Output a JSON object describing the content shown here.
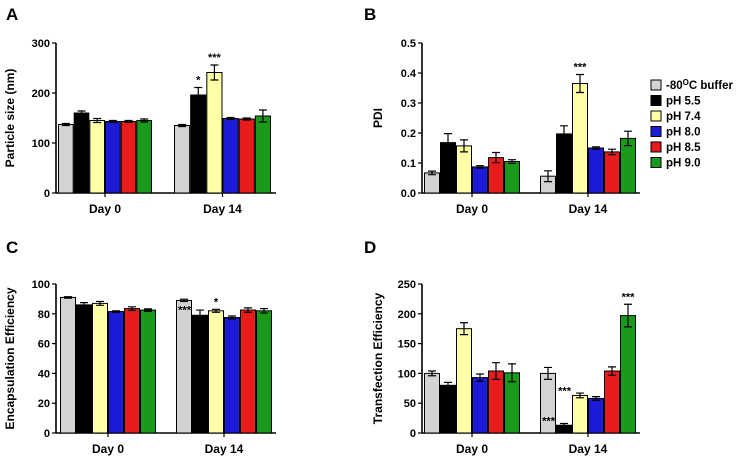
{
  "figure": {
    "colors": {
      "-80C buffer": "#d3d3d3",
      "pH 5.5": "#000000",
      "pH 7.4": "#ffffa8",
      "pH 8.0": "#1c1cd8",
      "pH 8.5": "#e81c1c",
      "pH 9.0": "#1a9a1a"
    },
    "legend": {
      "items": [
        {
          "key": "-80C buffer",
          "pre": "-80",
          "sup": "O",
          "post": "C buffer"
        },
        {
          "key": "pH 5.5",
          "pre": "pH 5.5",
          "sup": "",
          "post": ""
        },
        {
          "key": "pH 7.4",
          "pre": "pH 7.4",
          "sup": "",
          "post": ""
        },
        {
          "key": "pH 8.0",
          "pre": "pH 8.0",
          "sup": "",
          "post": ""
        },
        {
          "key": "pH 8.5",
          "pre": "pH 8.5",
          "sup": "",
          "post": ""
        },
        {
          "key": "pH 9.0",
          "pre": "pH 9.0",
          "sup": "",
          "post": ""
        }
      ]
    }
  },
  "chart_data": [
    {
      "panel": "A",
      "type": "bar",
      "ylabel": "Particle size (nm)",
      "ylim": [
        0,
        300
      ],
      "yticks": [
        0,
        100,
        200,
        300
      ],
      "ytick_labels": [
        "0",
        "100",
        "200",
        "300"
      ],
      "categories": [
        "Day 0",
        "Day 14"
      ],
      "series": [
        {
          "name": "-80C buffer",
          "values": [
            137,
            135
          ],
          "errors": [
            2,
            2
          ],
          "stars": [
            "",
            ""
          ]
        },
        {
          "name": "pH 5.5",
          "values": [
            160,
            196
          ],
          "errors": [
            4,
            15
          ],
          "stars": [
            "",
            "*"
          ]
        },
        {
          "name": "pH 7.4",
          "values": [
            145,
            241
          ],
          "errors": [
            4,
            15
          ],
          "stars": [
            "",
            "***"
          ]
        },
        {
          "name": "pH 8.0",
          "values": [
            143,
            149
          ],
          "errors": [
            2,
            2
          ],
          "stars": [
            "",
            ""
          ]
        },
        {
          "name": "pH 8.5",
          "values": [
            143,
            148
          ],
          "errors": [
            2,
            2
          ],
          "stars": [
            "",
            ""
          ]
        },
        {
          "name": "pH 9.0",
          "values": [
            145,
            154
          ],
          "errors": [
            3,
            12
          ],
          "stars": [
            "",
            ""
          ]
        }
      ]
    },
    {
      "panel": "B",
      "type": "bar",
      "ylabel": "PDI",
      "ylim": [
        0,
        0.5
      ],
      "yticks": [
        0,
        0.1,
        0.2,
        0.3,
        0.4,
        0.5
      ],
      "ytick_labels": [
        "0.0",
        "0.1",
        "0.2",
        "0.3",
        "0.4",
        "0.5"
      ],
      "categories": [
        "Day 0",
        "Day 14"
      ],
      "series": [
        {
          "name": "-80C buffer",
          "values": [
            0.067,
            0.056
          ],
          "errors": [
            0.006,
            0.018
          ],
          "stars": [
            "",
            ""
          ]
        },
        {
          "name": "pH 5.5",
          "values": [
            0.168,
            0.197
          ],
          "errors": [
            0.03,
            0.027
          ],
          "stars": [
            "",
            ""
          ]
        },
        {
          "name": "pH 7.4",
          "values": [
            0.157,
            0.365
          ],
          "errors": [
            0.02,
            0.03
          ],
          "stars": [
            "",
            "***"
          ]
        },
        {
          "name": "pH 8.0",
          "values": [
            0.087,
            0.15
          ],
          "errors": [
            0.004,
            0.004
          ],
          "stars": [
            "",
            ""
          ]
        },
        {
          "name": "pH 8.5",
          "values": [
            0.118,
            0.137
          ],
          "errors": [
            0.017,
            0.009
          ],
          "stars": [
            "",
            ""
          ]
        },
        {
          "name": "pH 9.0",
          "values": [
            0.105,
            0.182
          ],
          "errors": [
            0.006,
            0.024
          ],
          "stars": [
            "",
            ""
          ]
        }
      ]
    },
    {
      "panel": "C",
      "type": "bar",
      "ylabel": "Encapsulation Efficiency",
      "ylim": [
        0,
        100
      ],
      "yticks": [
        0,
        20,
        40,
        60,
        80,
        100
      ],
      "ytick_labels": [
        "0",
        "20",
        "40",
        "60",
        "80",
        "100"
      ],
      "categories": [
        "Day 0",
        "Day 14"
      ],
      "series": [
        {
          "name": "-80C buffer",
          "values": [
            91,
            89
          ],
          "errors": [
            0.5,
            0.8
          ],
          "stars": [
            "",
            ""
          ]
        },
        {
          "name": "pH 5.5",
          "values": [
            86,
            79
          ],
          "errors": [
            1.5,
            3.5
          ],
          "stars": [
            "",
            "***"
          ]
        },
        {
          "name": "pH 7.4",
          "values": [
            87,
            82
          ],
          "errors": [
            1.3,
            1
          ],
          "stars": [
            "",
            "*"
          ]
        },
        {
          "name": "pH 8.0",
          "values": [
            81.5,
            77.5
          ],
          "errors": [
            0.5,
            1
          ],
          "stars": [
            "",
            ""
          ]
        },
        {
          "name": "pH 8.5",
          "values": [
            83.5,
            82.5
          ],
          "errors": [
            1.2,
            1.5
          ],
          "stars": [
            "",
            ""
          ]
        },
        {
          "name": "pH 9.0",
          "values": [
            82.5,
            82
          ],
          "errors": [
            0.8,
            1.5
          ],
          "stars": [
            "",
            ""
          ]
        }
      ]
    },
    {
      "panel": "D",
      "type": "bar",
      "ylabel": "Transfection Efficiency",
      "ylim": [
        0,
        250
      ],
      "yticks": [
        0,
        50,
        100,
        150,
        200,
        250
      ],
      "ytick_labels": [
        "0",
        "50",
        "100",
        "150",
        "200",
        "250"
      ],
      "categories": [
        "Day 0",
        "Day 14"
      ],
      "series": [
        {
          "name": "-80C buffer",
          "values": [
            100,
            100
          ],
          "errors": [
            4,
            10
          ],
          "stars": [
            "",
            ""
          ]
        },
        {
          "name": "pH 5.5",
          "values": [
            80,
            13
          ],
          "errors": [
            5,
            3
          ],
          "stars": [
            "",
            "***"
          ]
        },
        {
          "name": "pH 7.4",
          "values": [
            175,
            63
          ],
          "errors": [
            10,
            4
          ],
          "stars": [
            "",
            "***"
          ]
        },
        {
          "name": "pH 8.0",
          "values": [
            93,
            58
          ],
          "errors": [
            6,
            3
          ],
          "stars": [
            "",
            ""
          ]
        },
        {
          "name": "pH 8.5",
          "values": [
            104,
            104
          ],
          "errors": [
            14,
            7
          ],
          "stars": [
            "",
            ""
          ]
        },
        {
          "name": "pH 9.0",
          "values": [
            101,
            197
          ],
          "errors": [
            15,
            19
          ],
          "stars": [
            "",
            "***"
          ]
        }
      ]
    }
  ]
}
